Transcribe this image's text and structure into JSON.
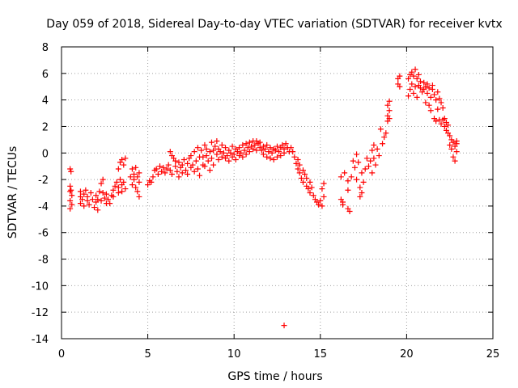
{
  "chart_data": {
    "type": "scatter",
    "title": "Day 059 of 2018, Sidereal Day-to-day VTEC variation (SDTVAR) for receiver kvtx",
    "xlabel": "GPS time / hours",
    "ylabel": "SDTVAR / TECUs",
    "xlim": [
      0,
      25
    ],
    "ylim": [
      -14,
      8
    ],
    "xticks": [
      0,
      5,
      10,
      15,
      20,
      25
    ],
    "yticks": [
      -14,
      -12,
      -10,
      -8,
      -6,
      -4,
      -2,
      0,
      2,
      4,
      6,
      8
    ],
    "grid": true,
    "marker": "+",
    "series": [
      {
        "name": "SDTVAR",
        "color": "#ff0000",
        "points": [
          [
            0.5,
            -1.2
          ],
          [
            0.5,
            -2.5
          ],
          [
            0.5,
            -2.9
          ],
          [
            0.5,
            -3.6
          ],
          [
            0.5,
            -4.2
          ],
          [
            0.55,
            -1.4
          ],
          [
            0.55,
            -2.8
          ],
          [
            0.6,
            -3.2
          ],
          [
            0.6,
            -3.9
          ],
          [
            1.1,
            -2.9
          ],
          [
            1.1,
            -3.3
          ],
          [
            1.1,
            -3.8
          ],
          [
            1.2,
            -3.5
          ],
          [
            1.3,
            -3.1
          ],
          [
            1.3,
            -4.0
          ],
          [
            1.4,
            -2.8
          ],
          [
            1.5,
            -3.6
          ],
          [
            1.5,
            -3.3
          ],
          [
            1.6,
            -3.9
          ],
          [
            1.7,
            -3.0
          ],
          [
            1.8,
            -3.5
          ],
          [
            1.9,
            -4.1
          ],
          [
            2.0,
            -3.2
          ],
          [
            2.0,
            -3.7
          ],
          [
            2.1,
            -4.3
          ],
          [
            2.1,
            -3.5
          ],
          [
            2.2,
            -2.9
          ],
          [
            2.3,
            -3.6
          ],
          [
            2.3,
            -2.3
          ],
          [
            2.4,
            -2.0
          ],
          [
            2.4,
            -3.0
          ],
          [
            2.5,
            -3.4
          ],
          [
            2.6,
            -3.8
          ],
          [
            2.6,
            -3.1
          ],
          [
            2.7,
            -3.5
          ],
          [
            2.8,
            -3.8
          ],
          [
            2.9,
            -3.2
          ],
          [
            3.0,
            -2.8
          ],
          [
            3.0,
            -3.3
          ],
          [
            3.1,
            -2.5
          ],
          [
            3.2,
            -2.2
          ],
          [
            3.3,
            -1.2
          ],
          [
            3.3,
            -2.6
          ],
          [
            3.3,
            -3.0
          ],
          [
            3.4,
            -2.0
          ],
          [
            3.4,
            -0.7
          ],
          [
            3.5,
            -0.5
          ],
          [
            3.5,
            -2.4
          ],
          [
            3.5,
            -2.9
          ],
          [
            3.6,
            -0.9
          ],
          [
            3.6,
            -2.2
          ],
          [
            3.7,
            -2.7
          ],
          [
            3.7,
            -0.4
          ],
          [
            4.0,
            -1.8
          ],
          [
            4.1,
            -1.2
          ],
          [
            4.1,
            -2.4
          ],
          [
            4.2,
            -1.6
          ],
          [
            4.2,
            -2.0
          ],
          [
            4.3,
            -2.6
          ],
          [
            4.3,
            -1.1
          ],
          [
            4.4,
            -1.8
          ],
          [
            4.4,
            -2.9
          ],
          [
            4.5,
            -1.5
          ],
          [
            4.5,
            -3.3
          ],
          [
            4.5,
            -2.2
          ],
          [
            5.0,
            -2.4
          ],
          [
            5.1,
            -2.1
          ],
          [
            5.2,
            -2.2
          ],
          [
            5.3,
            -1.8
          ],
          [
            5.4,
            -1.3
          ],
          [
            5.5,
            -1.2
          ],
          [
            5.6,
            -1.6
          ],
          [
            5.7,
            -1.0
          ],
          [
            5.8,
            -1.4
          ],
          [
            5.9,
            -1.1
          ],
          [
            6.0,
            -1.5
          ],
          [
            6.1,
            -1.2
          ],
          [
            6.2,
            -0.9
          ],
          [
            6.3,
            -1.3
          ],
          [
            6.3,
            0.1
          ],
          [
            6.4,
            -0.2
          ],
          [
            6.4,
            -1.6
          ],
          [
            6.5,
            -0.4
          ],
          [
            6.6,
            -1.0
          ],
          [
            6.6,
            -0.6
          ],
          [
            6.7,
            -1.4
          ],
          [
            6.8,
            -0.7
          ],
          [
            6.8,
            -1.8
          ],
          [
            6.9,
            -1.1
          ],
          [
            7.0,
            -0.9
          ],
          [
            7.0,
            -1.5
          ],
          [
            7.1,
            -0.5
          ],
          [
            7.2,
            -1.3
          ],
          [
            7.3,
            -0.8
          ],
          [
            7.3,
            -1.6
          ],
          [
            7.4,
            -0.4
          ],
          [
            7.5,
            -1.1
          ],
          [
            7.5,
            -0.2
          ],
          [
            7.6,
            -0.9
          ],
          [
            7.7,
            -1.4
          ],
          [
            7.7,
            0.1
          ],
          [
            7.8,
            -0.6
          ],
          [
            7.9,
            -1.2
          ],
          [
            7.9,
            0.4
          ],
          [
            8.0,
            -0.3
          ],
          [
            8.0,
            -1.7
          ],
          [
            8.1,
            0.2
          ],
          [
            8.2,
            -0.9
          ],
          [
            8.2,
            -0.3
          ],
          [
            8.3,
            0.6
          ],
          [
            8.3,
            -1.0
          ],
          [
            8.4,
            -0.2
          ],
          [
            8.4,
            0.3
          ],
          [
            8.5,
            -0.6
          ],
          [
            8.6,
            0.1
          ],
          [
            8.6,
            -1.3
          ],
          [
            8.7,
            0.8
          ],
          [
            8.7,
            -0.4
          ],
          [
            8.8,
            0.2
          ],
          [
            8.8,
            -0.9
          ],
          [
            8.9,
            0.5
          ],
          [
            9.0,
            -0.1
          ],
          [
            9.0,
            0.9
          ],
          [
            9.1,
            -0.5
          ],
          [
            9.1,
            0.3
          ],
          [
            9.2,
            0.1
          ],
          [
            9.3,
            -0.3
          ],
          [
            9.3,
            0.6
          ],
          [
            9.4,
            0.0
          ],
          [
            9.5,
            -0.4
          ],
          [
            9.5,
            0.4
          ],
          [
            9.6,
            -0.2
          ],
          [
            9.7,
            0.2
          ],
          [
            9.7,
            -0.6
          ],
          [
            9.8,
            0.0
          ],
          [
            9.9,
            -0.3
          ],
          [
            9.9,
            0.5
          ],
          [
            10.0,
            -0.1
          ],
          [
            10.1,
            0.3
          ],
          [
            10.1,
            -0.5
          ],
          [
            10.2,
            0.1
          ],
          [
            10.3,
            -0.2
          ],
          [
            10.3,
            0.4
          ],
          [
            10.4,
            0.0
          ],
          [
            10.5,
            0.6
          ],
          [
            10.5,
            -0.3
          ],
          [
            10.6,
            0.2
          ],
          [
            10.7,
            0.7
          ],
          [
            10.7,
            -0.1
          ],
          [
            10.8,
            0.4
          ],
          [
            10.9,
            0.8
          ],
          [
            10.9,
            0.1
          ],
          [
            11.0,
            0.5
          ],
          [
            11.1,
            0.9
          ],
          [
            11.1,
            0.3
          ],
          [
            11.2,
            0.6
          ],
          [
            11.3,
            0.9
          ],
          [
            11.3,
            0.2
          ],
          [
            11.4,
            0.7
          ],
          [
            11.5,
            0.4
          ],
          [
            11.5,
            0.8
          ],
          [
            11.6,
            0.2
          ],
          [
            11.7,
            0.5
          ],
          [
            11.7,
            -0.1
          ],
          [
            11.8,
            0.3
          ],
          [
            11.9,
            0.6
          ],
          [
            11.9,
            -0.3
          ],
          [
            12.0,
            0.1
          ],
          [
            12.1,
            0.4
          ],
          [
            12.1,
            -0.4
          ],
          [
            12.2,
            0.0
          ],
          [
            12.3,
            0.3
          ],
          [
            12.3,
            -0.5
          ],
          [
            12.4,
            0.2
          ],
          [
            12.5,
            0.5
          ],
          [
            12.5,
            -0.3
          ],
          [
            12.6,
            0.1
          ],
          [
            12.7,
            0.4
          ],
          [
            12.7,
            -0.2
          ],
          [
            12.8,
            0.6
          ],
          [
            12.9,
            0.3
          ],
          [
            12.9,
            0.0
          ],
          [
            13.0,
            0.7
          ],
          [
            13.1,
            0.4
          ],
          [
            13.2,
            0.1
          ],
          [
            13.3,
            0.4
          ],
          [
            13.4,
            0.1
          ],
          [
            13.5,
            -0.3
          ],
          [
            13.6,
            -0.8
          ],
          [
            13.7,
            -1.2
          ],
          [
            13.7,
            -0.5
          ],
          [
            13.8,
            -1.5
          ],
          [
            13.8,
            -0.9
          ],
          [
            13.9,
            -1.9
          ],
          [
            14.0,
            -1.3
          ],
          [
            14.0,
            -2.2
          ],
          [
            14.1,
            -1.6
          ],
          [
            14.2,
            -2.5
          ],
          [
            14.2,
            -1.9
          ],
          [
            14.3,
            -2.7
          ],
          [
            14.4,
            -2.2
          ],
          [
            14.4,
            -3.0
          ],
          [
            14.5,
            -2.6
          ],
          [
            14.6,
            -3.2
          ],
          [
            14.7,
            -3.5
          ],
          [
            14.8,
            -3.7
          ],
          [
            14.9,
            -3.9
          ],
          [
            15.0,
            -3.6
          ],
          [
            15.1,
            -4.0
          ],
          [
            15.1,
            -2.7
          ],
          [
            15.2,
            -2.3
          ],
          [
            15.2,
            -3.3
          ],
          [
            12.9,
            -13.0
          ],
          [
            16.2,
            -1.8
          ],
          [
            16.2,
            -3.5
          ],
          [
            16.3,
            -3.7
          ],
          [
            16.3,
            -3.9
          ],
          [
            16.4,
            -1.5
          ],
          [
            16.6,
            -2.1
          ],
          [
            16.6,
            -2.8
          ],
          [
            16.6,
            -4.2
          ],
          [
            16.7,
            -4.4
          ],
          [
            16.8,
            -1.8
          ],
          [
            16.9,
            -0.6
          ],
          [
            17.0,
            -1.1
          ],
          [
            17.1,
            -2.0
          ],
          [
            17.1,
            -0.1
          ],
          [
            17.2,
            -0.7
          ],
          [
            17.3,
            -2.6
          ],
          [
            17.3,
            -3.3
          ],
          [
            17.4,
            -1.5
          ],
          [
            17.4,
            -3.0
          ],
          [
            17.5,
            -2.2
          ],
          [
            17.6,
            -1.2
          ],
          [
            17.7,
            -0.4
          ],
          [
            17.8,
            -1.0
          ],
          [
            17.9,
            -0.6
          ],
          [
            18.0,
            -1.5
          ],
          [
            18.0,
            0.2
          ],
          [
            18.1,
            -0.4
          ],
          [
            18.1,
            0.6
          ],
          [
            18.2,
            -0.9
          ],
          [
            18.3,
            0.3
          ],
          [
            18.4,
            -0.2
          ],
          [
            18.5,
            1.8
          ],
          [
            18.6,
            0.7
          ],
          [
            18.7,
            1.2
          ],
          [
            18.8,
            1.5
          ],
          [
            18.9,
            2.4
          ],
          [
            18.9,
            2.8
          ],
          [
            18.9,
            3.6
          ],
          [
            19.0,
            3.9
          ],
          [
            19.0,
            2.6
          ],
          [
            19.0,
            3.2
          ],
          [
            19.5,
            5.2
          ],
          [
            19.5,
            5.6
          ],
          [
            19.6,
            5.0
          ],
          [
            19.6,
            5.8
          ],
          [
            20.1,
            4.3
          ],
          [
            20.1,
            5.6
          ],
          [
            20.2,
            5.9
          ],
          [
            20.2,
            4.8
          ],
          [
            20.3,
            6.1
          ],
          [
            20.3,
            5.2
          ],
          [
            20.4,
            4.5
          ],
          [
            20.4,
            5.8
          ],
          [
            20.5,
            6.3
          ],
          [
            20.5,
            5.0
          ],
          [
            20.6,
            5.6
          ],
          [
            20.6,
            4.2
          ],
          [
            20.7,
            5.1
          ],
          [
            20.7,
            5.9
          ],
          [
            20.8,
            4.9
          ],
          [
            20.8,
            5.4
          ],
          [
            20.9,
            4.6
          ],
          [
            21.0,
            5.3
          ],
          [
            21.0,
            4.8
          ],
          [
            21.1,
            5.0
          ],
          [
            21.1,
            3.8
          ],
          [
            21.2,
            4.5
          ],
          [
            21.2,
            5.2
          ],
          [
            21.3,
            3.6
          ],
          [
            21.3,
            4.9
          ],
          [
            21.4,
            4.2
          ],
          [
            21.4,
            3.2
          ],
          [
            21.5,
            4.8
          ],
          [
            21.5,
            5.1
          ],
          [
            21.6,
            4.4
          ],
          [
            21.6,
            2.6
          ],
          [
            21.7,
            4.0
          ],
          [
            21.7,
            2.4
          ],
          [
            21.8,
            4.6
          ],
          [
            21.8,
            3.3
          ],
          [
            21.9,
            2.5
          ],
          [
            21.9,
            4.1
          ],
          [
            22.0,
            3.8
          ],
          [
            22.0,
            2.2
          ],
          [
            22.1,
            2.5
          ],
          [
            22.1,
            3.4
          ],
          [
            22.2,
            2.0
          ],
          [
            22.2,
            2.6
          ],
          [
            22.3,
            1.7
          ],
          [
            22.3,
            2.3
          ],
          [
            22.4,
            1.5
          ],
          [
            22.4,
            2.1
          ],
          [
            22.5,
            1.3
          ],
          [
            22.5,
            0.6
          ],
          [
            22.6,
            1.0
          ],
          [
            22.6,
            0.3
          ],
          [
            22.7,
            0.8
          ],
          [
            22.7,
            -0.3
          ],
          [
            22.8,
            0.5
          ],
          [
            22.8,
            -0.6
          ],
          [
            22.9,
            0.9
          ],
          [
            22.9,
            0.1
          ],
          [
            22.9,
            0.7
          ]
        ]
      }
    ]
  }
}
